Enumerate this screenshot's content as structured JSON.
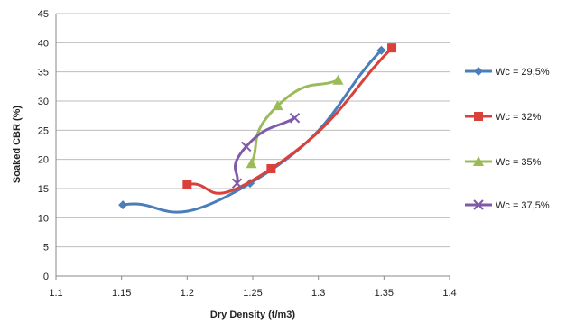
{
  "chart_data": {
    "type": "line",
    "title": "",
    "xlabel": "Dry  Density (t/m3)",
    "ylabel": "Soaked CBR (%)",
    "xlim": [
      1.1,
      1.4
    ],
    "ylim": [
      0,
      45
    ],
    "x_ticks": [
      "1.1",
      "1.15",
      "1.2",
      "1.25",
      "1.3",
      "1.35",
      "1.4"
    ],
    "y_ticks": [
      "0",
      "5",
      "10",
      "15",
      "20",
      "25",
      "30",
      "35",
      "40",
      "45"
    ],
    "grid": "horizontal",
    "legend_position": "right",
    "series": [
      {
        "name": "Wc = 29,5%",
        "color": "#4a7ebb",
        "marker": "diamond",
        "x": [
          1.151,
          1.248,
          1.348
        ],
        "y": [
          12.2,
          15.9,
          38.7
        ]
      },
      {
        "name": "Wc = 32%",
        "color": "#d9413a",
        "marker": "square",
        "x": [
          1.2,
          1.264,
          1.356
        ],
        "y": [
          15.7,
          18.4,
          39.1
        ]
      },
      {
        "name": "Wc = 35%",
        "color": "#9bbb59",
        "marker": "triangle",
        "x": [
          1.249,
          1.269,
          1.315
        ],
        "y": [
          19.3,
          29.2,
          33.6
        ]
      },
      {
        "name": "Wc = 37,5%",
        "color": "#7e5aa8",
        "marker": "x",
        "x": [
          1.238,
          1.245,
          1.282
        ],
        "y": [
          15.9,
          22.2,
          27.1
        ]
      }
    ]
  }
}
